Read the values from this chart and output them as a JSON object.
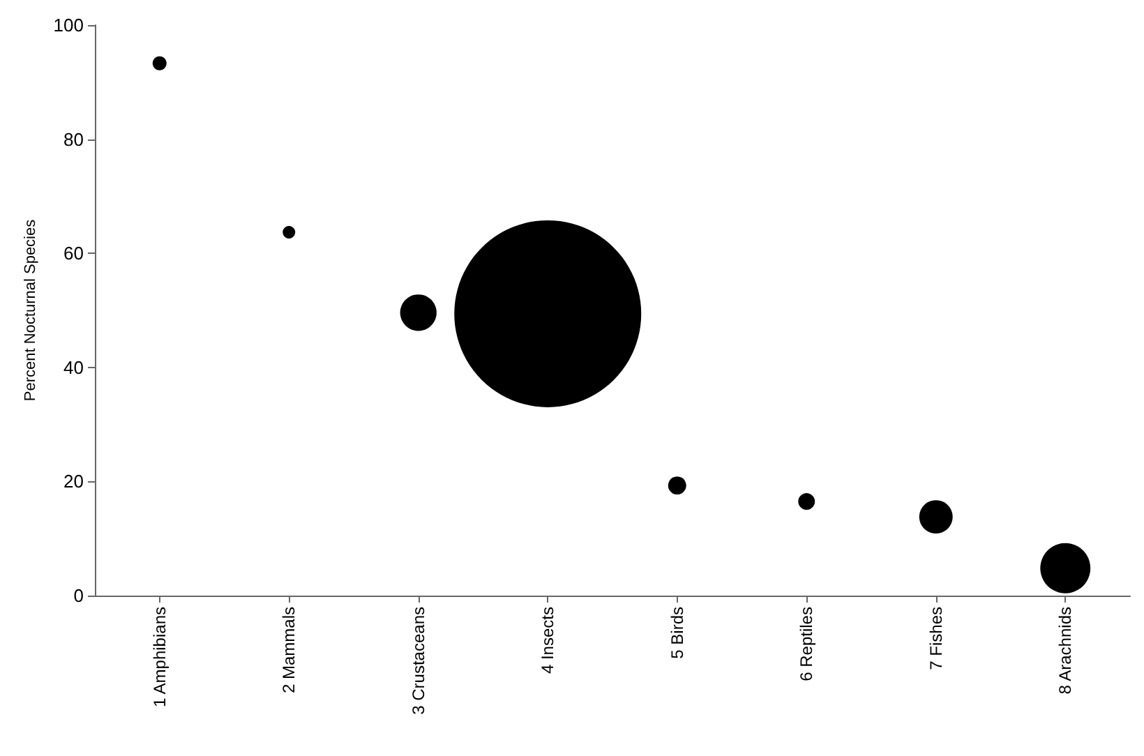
{
  "chart_data": {
    "type": "bubble",
    "ylabel": "Percent Nocturnal Species",
    "categories": [
      "1 Amphibians",
      "2 Mammals",
      "3 Crustaceans",
      "4 Insects",
      "5 Birds",
      "6 Reptiles",
      "7 Fishes",
      "8 Arachnids"
    ],
    "values": [
      93.3,
      63.7,
      49.6,
      49.4,
      19.3,
      16.5,
      13.8,
      4.8
    ],
    "sizes": [
      0.0056,
      0.0045,
      0.038,
      1,
      0.0094,
      0.008,
      0.032,
      0.072
    ],
    "color": "#000000",
    "marker": "circle",
    "ylim": [
      0,
      100
    ],
    "yticks": [
      0,
      20,
      40,
      60,
      80,
      100
    ],
    "grid": false
  }
}
